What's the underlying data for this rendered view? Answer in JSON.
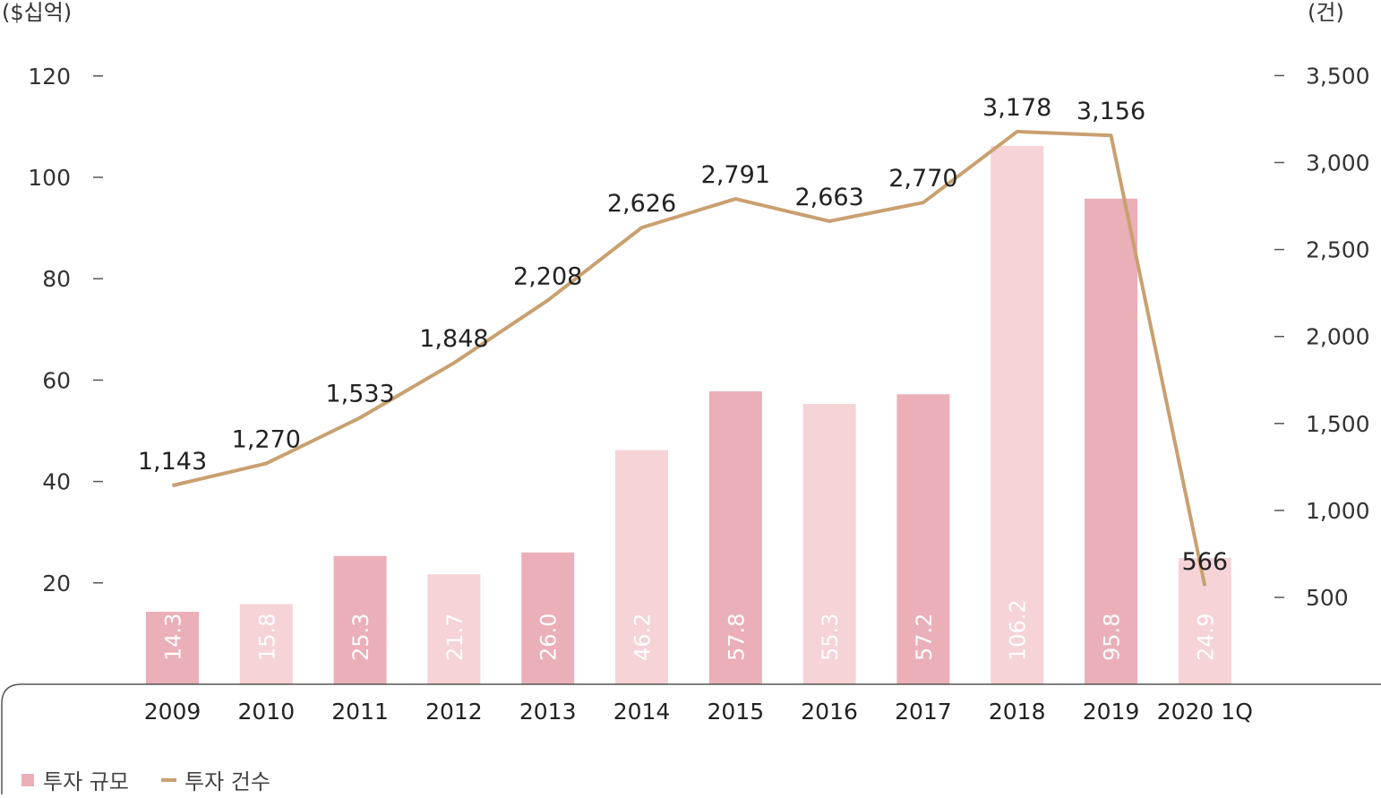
{
  "chart_data": {
    "type": "bar+line",
    "categories": [
      "2009",
      "2010",
      "2011",
      "2012",
      "2013",
      "2014",
      "2015",
      "2016",
      "2017",
      "2018",
      "2019",
      "2020 1Q"
    ],
    "left_axis": {
      "unit_label": "($십억)",
      "ticks": [
        20,
        40,
        60,
        80,
        100,
        120
      ],
      "range": [
        0,
        120
      ]
    },
    "right_axis": {
      "unit_label": "(건)",
      "ticks": [
        "500",
        "1,000",
        "1,500",
        "2,000",
        "2,500",
        "3,000",
        "3,500"
      ],
      "range": [
        0,
        3500
      ]
    },
    "series": [
      {
        "name": "투자 규모",
        "type": "bar",
        "axis": "left",
        "values": [
          14.3,
          15.8,
          25.3,
          21.7,
          26.0,
          46.2,
          57.8,
          55.3,
          57.2,
          106.2,
          95.8,
          24.9
        ],
        "labels": [
          "14.3",
          "15.8",
          "25.3",
          "21.7",
          "26.0",
          "46.2",
          "57.8",
          "55.3",
          "57.2",
          "106.2",
          "95.8",
          "24.9"
        ],
        "colors": [
          "#ebafb8",
          "#f5d3d7"
        ]
      },
      {
        "name": "투자 건수",
        "type": "line",
        "axis": "right",
        "values": [
          1143,
          1270,
          1533,
          1848,
          2208,
          2626,
          2791,
          2663,
          2770,
          3178,
          3156,
          566
        ],
        "labels": [
          "1,143",
          "1,270",
          "1,533",
          "1,848",
          "2,208",
          "2,626",
          "2,791",
          "2,663",
          "2,770",
          "3,178",
          "3,156",
          "566"
        ],
        "color": "#c9a070"
      }
    ],
    "legend": {
      "placement": "bottom-left",
      "items": [
        "투자 규모",
        "투자 건수"
      ]
    },
    "grid": false
  }
}
